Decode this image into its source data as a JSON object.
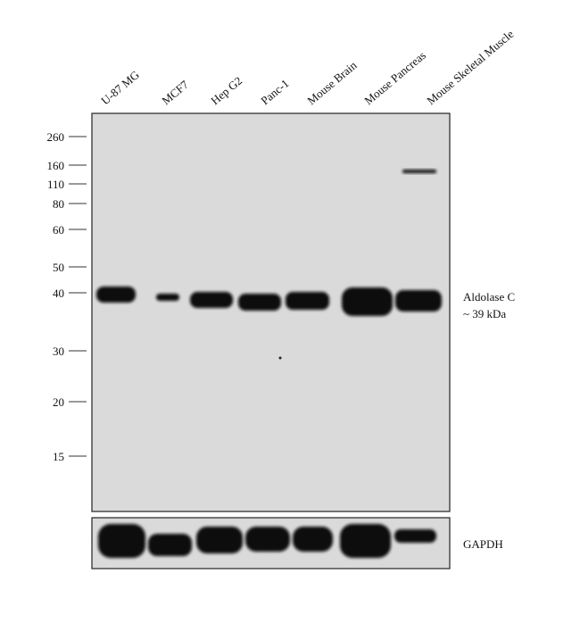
{
  "lanes": [
    "U-87 MG",
    "MCF7",
    "Hep G2",
    "Panc-1",
    "Mouse Brain",
    "Mouse Pancreas",
    "Mouse Skeletal Muscle"
  ],
  "markers": [
    260,
    160,
    110,
    80,
    60,
    50,
    40,
    30,
    20,
    15
  ],
  "target": {
    "name": "Aldolase C",
    "size": "~ 39 kDa"
  },
  "loading_control": "GAPDH"
}
